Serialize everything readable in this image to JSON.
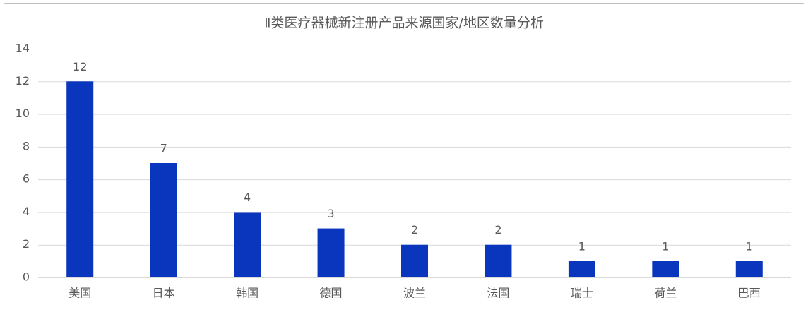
{
  "chart_data": {
    "type": "bar",
    "title": "Ⅱ类医疗器械新注册产品来源国家/地区数量分析",
    "categories": [
      "美国",
      "日本",
      "韩国",
      "德国",
      "波兰",
      "法国",
      "瑞士",
      "荷兰",
      "巴西"
    ],
    "values": [
      12,
      7,
      4,
      3,
      2,
      2,
      1,
      1,
      1
    ],
    "color": "#0a36bd",
    "ylim": [
      0,
      14
    ],
    "yticks": [
      0,
      2,
      4,
      6,
      8,
      10,
      12,
      14
    ],
    "grid": true
  }
}
